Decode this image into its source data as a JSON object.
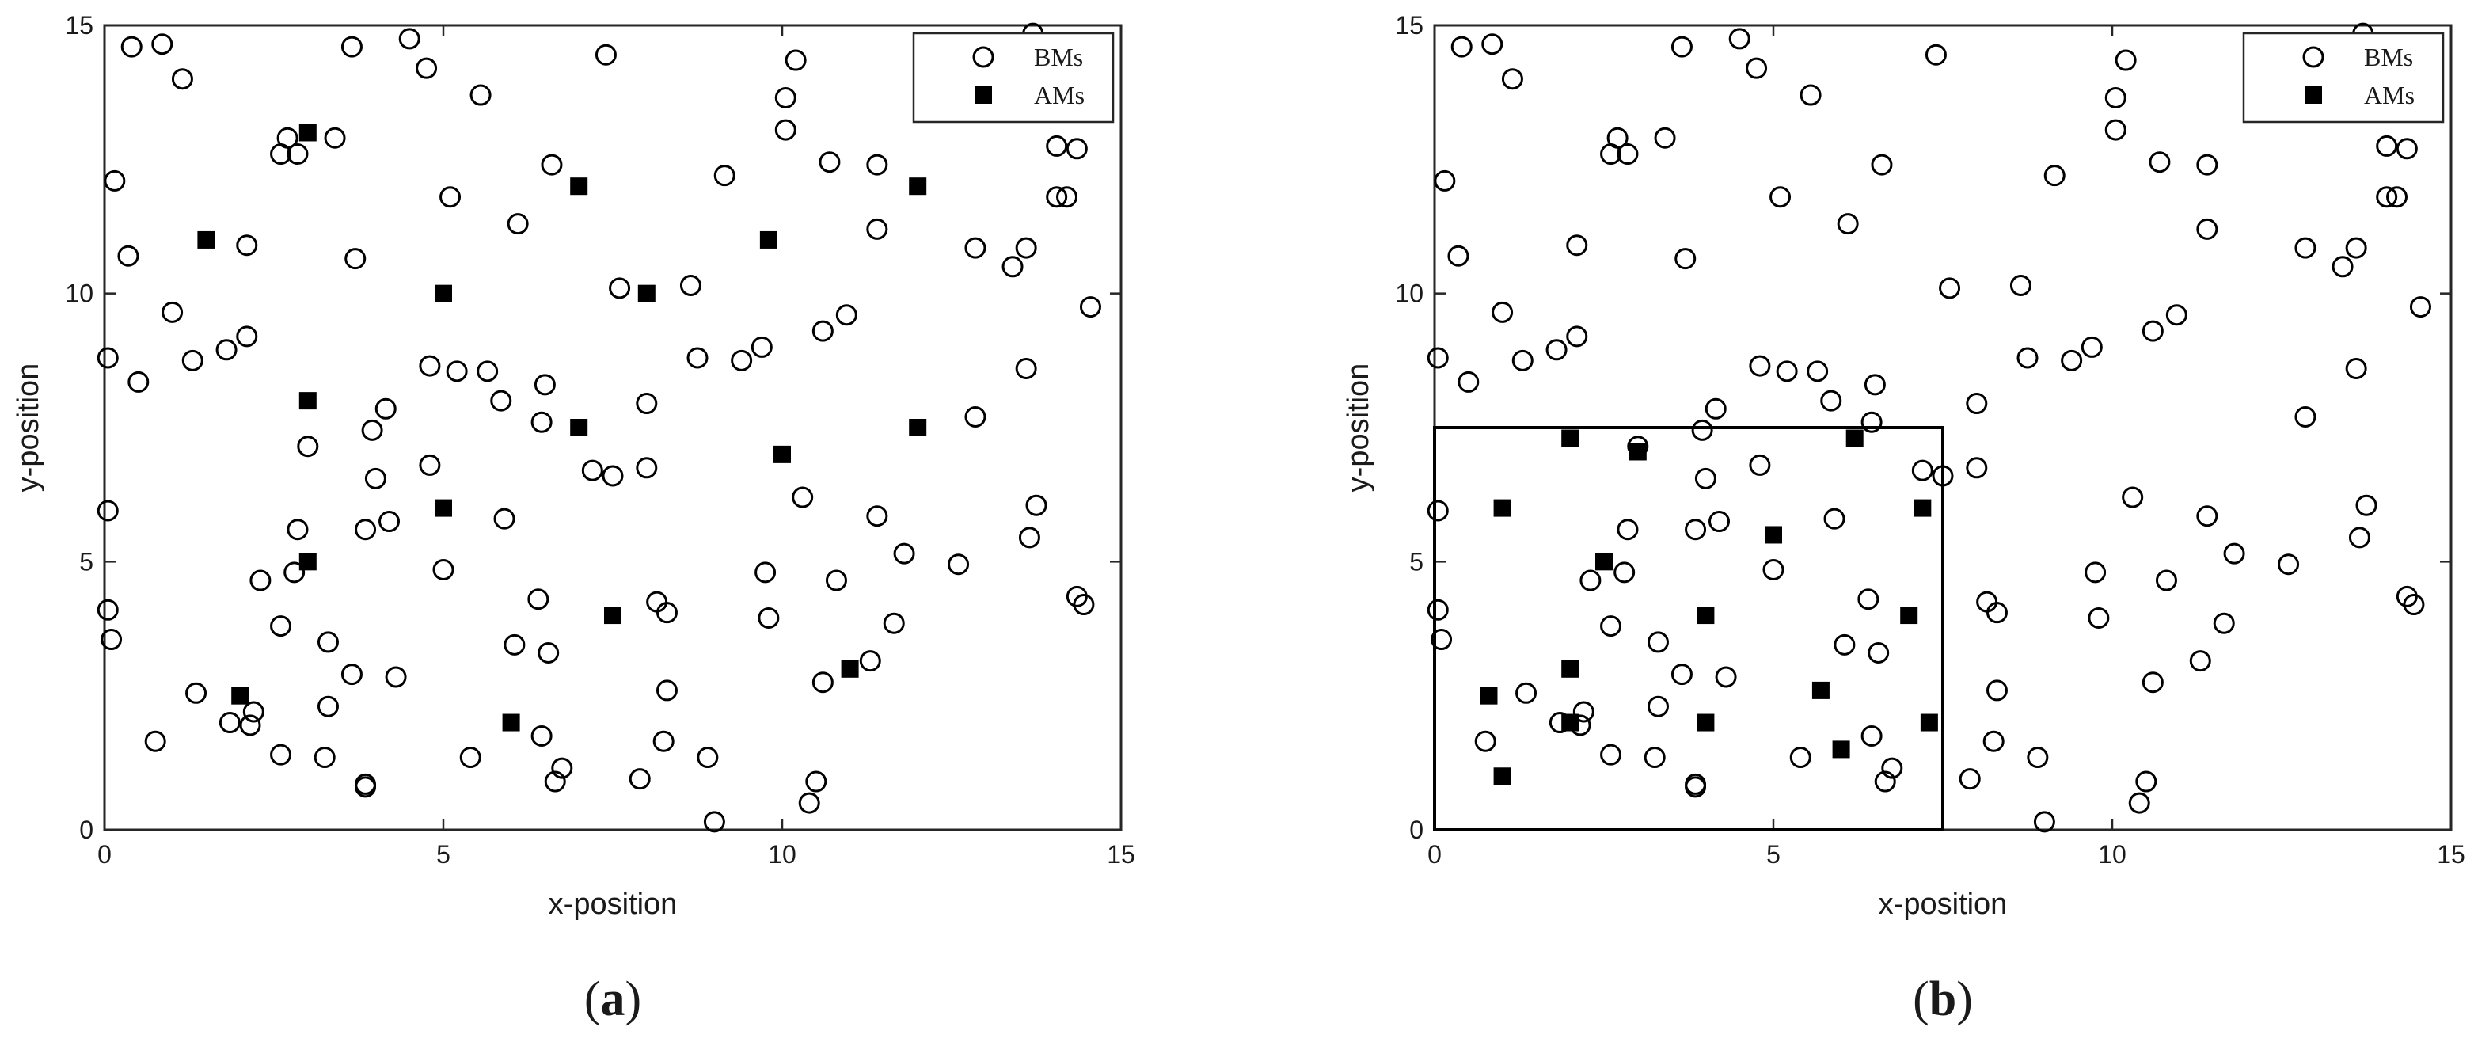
{
  "chart_data": [
    {
      "type": "scatter",
      "panel_label": "(a)",
      "panel_letter": "a",
      "title": "",
      "xlabel": "x-position",
      "ylabel": "y-position",
      "xlim": [
        0,
        15
      ],
      "ylim": [
        0,
        15
      ],
      "xticks": [
        "0",
        "5",
        "10",
        "15"
      ],
      "yticks": [
        "0",
        "5",
        "10",
        "15"
      ],
      "grid": false,
      "legend_position": "top-right",
      "series": [
        {
          "name": "BMs",
          "marker": "open-circle",
          "points": [
            [
              0.4,
              14.6
            ],
            [
              0.85,
              14.65
            ],
            [
              1.15,
              14.0
            ],
            [
              0.15,
              12.1
            ],
            [
              0.35,
              10.7
            ],
            [
              0.05,
              8.8
            ],
            [
              0.5,
              8.35
            ],
            [
              1.0,
              9.65
            ],
            [
              1.3,
              8.75
            ],
            [
              1.8,
              8.95
            ],
            [
              2.1,
              9.2
            ],
            [
              2.1,
              10.9
            ],
            [
              2.6,
              12.6
            ],
            [
              2.7,
              12.9
            ],
            [
              2.85,
              12.6
            ],
            [
              3.4,
              12.9
            ],
            [
              3.65,
              14.6
            ],
            [
              4.5,
              14.75
            ],
            [
              4.75,
              14.2
            ],
            [
              5.55,
              13.7
            ],
            [
              5.1,
              11.8
            ],
            [
              3.7,
              10.65
            ],
            [
              6.1,
              11.3
            ],
            [
              6.6,
              12.4
            ],
            [
              7.4,
              14.45
            ],
            [
              7.6,
              10.1
            ],
            [
              8.65,
              10.15
            ],
            [
              9.15,
              12.2
            ],
            [
              10.05,
              13.65
            ],
            [
              10.2,
              14.35
            ],
            [
              10.05,
              13.05
            ],
            [
              10.7,
              12.45
            ],
            [
              11.4,
              12.4
            ],
            [
              11.4,
              11.2
            ],
            [
              12.85,
              10.85
            ],
            [
              13.4,
              10.5
            ],
            [
              13.6,
              10.85
            ],
            [
              13.7,
              14.85
            ],
            [
              14.05,
              12.75
            ],
            [
              14.05,
              11.8
            ],
            [
              14.2,
              11.8
            ],
            [
              14.35,
              12.7
            ],
            [
              14.55,
              9.75
            ],
            [
              0.05,
              5.95
            ],
            [
              0.05,
              4.1
            ],
            [
              0.1,
              3.55
            ],
            [
              0.75,
              1.65
            ],
            [
              1.35,
              2.55
            ],
            [
              1.85,
              2.0
            ],
            [
              2.15,
              1.95
            ],
            [
              2.2,
              2.2
            ],
            [
              2.3,
              4.65
            ],
            [
              2.6,
              3.8
            ],
            [
              2.6,
              1.4
            ],
            [
              2.8,
              4.8
            ],
            [
              2.85,
              5.6
            ],
            [
              3.0,
              7.15
            ],
            [
              3.3,
              3.5
            ],
            [
              3.3,
              2.3
            ],
            [
              3.25,
              1.35
            ],
            [
              3.65,
              2.9
            ],
            [
              3.85,
              5.6
            ],
            [
              3.95,
              7.45
            ],
            [
              4.0,
              6.55
            ],
            [
              4.15,
              7.85
            ],
            [
              4.2,
              5.75
            ],
            [
              4.3,
              2.85
            ],
            [
              3.85,
              0.85
            ],
            [
              3.85,
              0.8
            ],
            [
              4.8,
              8.65
            ],
            [
              4.8,
              6.8
            ],
            [
              5.0,
              4.85
            ],
            [
              5.2,
              8.55
            ],
            [
              5.4,
              1.35
            ],
            [
              5.65,
              8.55
            ],
            [
              5.85,
              8.0
            ],
            [
              5.9,
              5.8
            ],
            [
              6.05,
              3.45
            ],
            [
              6.4,
              4.3
            ],
            [
              6.5,
              8.3
            ],
            [
              6.45,
              7.6
            ],
            [
              6.55,
              3.3
            ],
            [
              6.45,
              1.75
            ],
            [
              6.65,
              0.9
            ],
            [
              6.75,
              1.15
            ],
            [
              7.2,
              6.7
            ],
            [
              7.5,
              6.6
            ],
            [
              7.9,
              0.95
            ],
            [
              8.0,
              7.95
            ],
            [
              8.0,
              6.75
            ],
            [
              8.15,
              4.25
            ],
            [
              8.25,
              1.65
            ],
            [
              8.3,
              4.05
            ],
            [
              8.3,
              2.6
            ],
            [
              8.75,
              8.8
            ],
            [
              8.9,
              1.35
            ],
            [
              9.0,
              0.15
            ],
            [
              9.4,
              8.75
            ],
            [
              9.7,
              9.0
            ],
            [
              9.75,
              4.8
            ],
            [
              9.8,
              3.95
            ],
            [
              10.3,
              6.2
            ],
            [
              10.4,
              0.5
            ],
            [
              10.5,
              0.9
            ],
            [
              10.6,
              9.3
            ],
            [
              10.6,
              2.75
            ],
            [
              10.8,
              4.65
            ],
            [
              10.95,
              9.6
            ],
            [
              11.3,
              3.15
            ],
            [
              11.4,
              5.85
            ],
            [
              11.65,
              3.85
            ],
            [
              11.8,
              5.15
            ],
            [
              12.6,
              4.95
            ],
            [
              12.85,
              7.7
            ],
            [
              13.6,
              8.6
            ],
            [
              13.65,
              5.45
            ],
            [
              13.75,
              6.05
            ],
            [
              14.35,
              4.35
            ],
            [
              14.45,
              4.2
            ]
          ]
        },
        {
          "name": "AMs",
          "marker": "filled-square",
          "points": [
            [
              1.5,
              11
            ],
            [
              3,
              13
            ],
            [
              7,
              12
            ],
            [
              12,
              12
            ],
            [
              9.8,
              11
            ],
            [
              5,
              10
            ],
            [
              8,
              10
            ],
            [
              3,
              8
            ],
            [
              7,
              7.5
            ],
            [
              12,
              7.5
            ],
            [
              10,
              7
            ],
            [
              5,
              6
            ],
            [
              3,
              5
            ],
            [
              7.5,
              4
            ],
            [
              11,
              3
            ],
            [
              2,
              2.5
            ],
            [
              6,
              2
            ]
          ]
        }
      ]
    },
    {
      "type": "scatter",
      "panel_label": "(b)",
      "panel_letter": "b",
      "title": "",
      "xlabel": "x-position",
      "ylabel": "y-position",
      "xlim": [
        0,
        15
      ],
      "ylim": [
        0,
        15
      ],
      "xticks": [
        "0",
        "5",
        "10",
        "15"
      ],
      "yticks": [
        "0",
        "5",
        "10",
        "15"
      ],
      "grid": false,
      "legend_position": "top-right",
      "region_box": {
        "x": [
          0,
          7.5
        ],
        "y": [
          0,
          7.5
        ]
      },
      "series": [
        {
          "name": "BMs",
          "marker": "open-circle",
          "points": [
            [
              0.4,
              14.6
            ],
            [
              0.85,
              14.65
            ],
            [
              1.15,
              14.0
            ],
            [
              0.15,
              12.1
            ],
            [
              0.35,
              10.7
            ],
            [
              0.05,
              8.8
            ],
            [
              0.5,
              8.35
            ],
            [
              1.0,
              9.65
            ],
            [
              1.3,
              8.75
            ],
            [
              1.8,
              8.95
            ],
            [
              2.1,
              9.2
            ],
            [
              2.1,
              10.9
            ],
            [
              2.6,
              12.6
            ],
            [
              2.7,
              12.9
            ],
            [
              2.85,
              12.6
            ],
            [
              3.4,
              12.9
            ],
            [
              3.65,
              14.6
            ],
            [
              4.5,
              14.75
            ],
            [
              4.75,
              14.2
            ],
            [
              5.55,
              13.7
            ],
            [
              5.1,
              11.8
            ],
            [
              3.7,
              10.65
            ],
            [
              6.1,
              11.3
            ],
            [
              6.6,
              12.4
            ],
            [
              7.4,
              14.45
            ],
            [
              7.6,
              10.1
            ],
            [
              8.65,
              10.15
            ],
            [
              9.15,
              12.2
            ],
            [
              10.05,
              13.65
            ],
            [
              10.2,
              14.35
            ],
            [
              10.05,
              13.05
            ],
            [
              10.7,
              12.45
            ],
            [
              11.4,
              12.4
            ],
            [
              11.4,
              11.2
            ],
            [
              12.85,
              10.85
            ],
            [
              13.4,
              10.5
            ],
            [
              13.6,
              10.85
            ],
            [
              13.7,
              14.85
            ],
            [
              14.05,
              12.75
            ],
            [
              14.05,
              11.8
            ],
            [
              14.2,
              11.8
            ],
            [
              14.35,
              12.7
            ],
            [
              14.55,
              9.75
            ],
            [
              0.05,
              5.95
            ],
            [
              0.05,
              4.1
            ],
            [
              0.1,
              3.55
            ],
            [
              0.75,
              1.65
            ],
            [
              1.35,
              2.55
            ],
            [
              1.85,
              2.0
            ],
            [
              2.15,
              1.95
            ],
            [
              2.2,
              2.2
            ],
            [
              2.3,
              4.65
            ],
            [
              2.6,
              3.8
            ],
            [
              2.6,
              1.4
            ],
            [
              2.8,
              4.8
            ],
            [
              2.85,
              5.6
            ],
            [
              3.0,
              7.15
            ],
            [
              3.3,
              3.5
            ],
            [
              3.3,
              2.3
            ],
            [
              3.25,
              1.35
            ],
            [
              3.65,
              2.9
            ],
            [
              3.85,
              5.6
            ],
            [
              3.95,
              7.45
            ],
            [
              4.0,
              6.55
            ],
            [
              4.15,
              7.85
            ],
            [
              4.2,
              5.75
            ],
            [
              4.3,
              2.85
            ],
            [
              3.85,
              0.85
            ],
            [
              3.85,
              0.8
            ],
            [
              4.8,
              8.65
            ],
            [
              4.8,
              6.8
            ],
            [
              5.0,
              4.85
            ],
            [
              5.2,
              8.55
            ],
            [
              5.4,
              1.35
            ],
            [
              5.65,
              8.55
            ],
            [
              5.85,
              8.0
            ],
            [
              5.9,
              5.8
            ],
            [
              6.05,
              3.45
            ],
            [
              6.4,
              4.3
            ],
            [
              6.5,
              8.3
            ],
            [
              6.45,
              7.6
            ],
            [
              6.55,
              3.3
            ],
            [
              6.45,
              1.75
            ],
            [
              6.65,
              0.9
            ],
            [
              6.75,
              1.15
            ],
            [
              7.2,
              6.7
            ],
            [
              7.5,
              6.6
            ],
            [
              7.9,
              0.95
            ],
            [
              8.0,
              7.95
            ],
            [
              8.0,
              6.75
            ],
            [
              8.15,
              4.25
            ],
            [
              8.25,
              1.65
            ],
            [
              8.3,
              4.05
            ],
            [
              8.3,
              2.6
            ],
            [
              8.75,
              8.8
            ],
            [
              8.9,
              1.35
            ],
            [
              9.0,
              0.15
            ],
            [
              9.4,
              8.75
            ],
            [
              9.7,
              9.0
            ],
            [
              9.75,
              4.8
            ],
            [
              9.8,
              3.95
            ],
            [
              10.3,
              6.2
            ],
            [
              10.4,
              0.5
            ],
            [
              10.5,
              0.9
            ],
            [
              10.6,
              9.3
            ],
            [
              10.6,
              2.75
            ],
            [
              10.8,
              4.65
            ],
            [
              10.95,
              9.6
            ],
            [
              11.3,
              3.15
            ],
            [
              11.4,
              5.85
            ],
            [
              11.65,
              3.85
            ],
            [
              11.8,
              5.15
            ],
            [
              12.6,
              4.95
            ],
            [
              12.85,
              7.7
            ],
            [
              13.6,
              8.6
            ],
            [
              13.65,
              5.45
            ],
            [
              13.75,
              6.05
            ],
            [
              14.35,
              4.35
            ],
            [
              14.45,
              4.2
            ]
          ]
        },
        {
          "name": "AMs",
          "marker": "filled-square",
          "points": [
            [
              2,
              7.3
            ],
            [
              3,
              7.05
            ],
            [
              6.2,
              7.3
            ],
            [
              1,
              6
            ],
            [
              7.2,
              6
            ],
            [
              5,
              5.5
            ],
            [
              2.5,
              5
            ],
            [
              4,
              4
            ],
            [
              7,
              4
            ],
            [
              2,
              3
            ],
            [
              5.7,
              2.6
            ],
            [
              0.8,
              2.5
            ],
            [
              2,
              2
            ],
            [
              4,
              2
            ],
            [
              7.3,
              2
            ],
            [
              6,
              1.5
            ],
            [
              1,
              1
            ]
          ]
        }
      ]
    }
  ]
}
